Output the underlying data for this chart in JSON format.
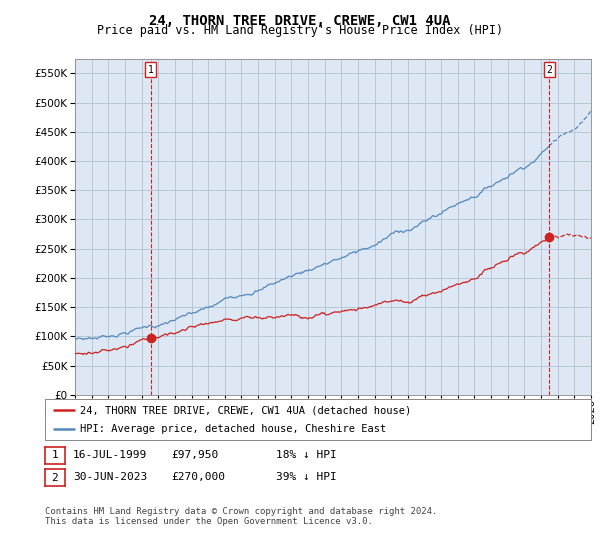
{
  "title": "24, THORN TREE DRIVE, CREWE, CW1 4UA",
  "subtitle": "Price paid vs. HM Land Registry's House Price Index (HPI)",
  "ytick_values": [
    0,
    50000,
    100000,
    150000,
    200000,
    250000,
    300000,
    350000,
    400000,
    450000,
    500000,
    550000
  ],
  "ytick_labels": [
    "£0",
    "£50K",
    "£100K",
    "£150K",
    "£200K",
    "£250K",
    "£300K",
    "£350K",
    "£400K",
    "£450K",
    "£500K",
    "£550K"
  ],
  "ylim": [
    0,
    575000
  ],
  "year_start": 1995,
  "year_end": 2026,
  "hpi_color": "#5588bb",
  "price_color": "#cc2222",
  "plot_bg_color": "#dde8f4",
  "marker1_year": 1999.54,
  "marker1_value": 97950,
  "marker2_year": 2023.5,
  "marker2_value": 270000,
  "marker1_label": "1",
  "marker2_label": "2",
  "legend_line1": "24, THORN TREE DRIVE, CREWE, CW1 4UA (detached house)",
  "legend_line2": "HPI: Average price, detached house, Cheshire East",
  "table_row1": [
    "1",
    "16-JUL-1999",
    "£97,950",
    "18% ↓ HPI"
  ],
  "table_row2": [
    "2",
    "30-JUN-2023",
    "£270,000",
    "39% ↓ HPI"
  ],
  "footnote": "Contains HM Land Registry data © Crown copyright and database right 2024.\nThis data is licensed under the Open Government Licence v3.0.",
  "bg_color": "#ffffff",
  "grid_color": "#aabbcc",
  "title_fontsize": 10,
  "subtitle_fontsize": 8.5,
  "tick_fontsize": 7.5
}
